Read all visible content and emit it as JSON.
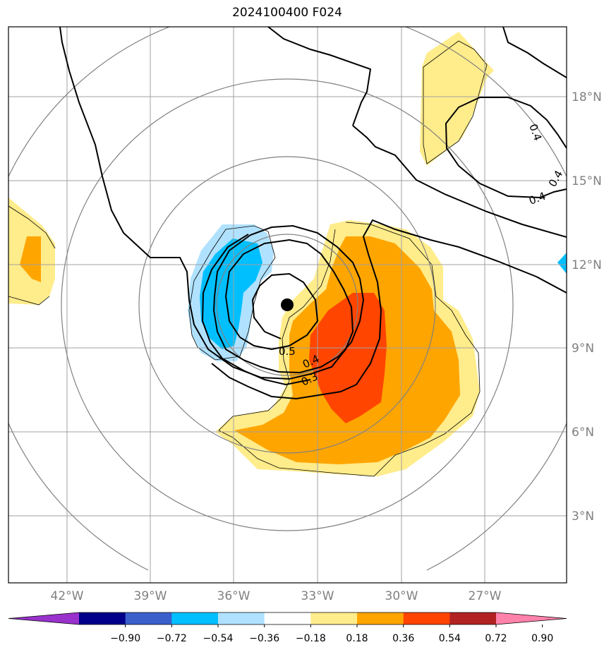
{
  "title": "2024100400 F024",
  "lat_labels": [
    "18°N",
    "15°N",
    "12°N",
    "9°N",
    "6°N",
    "3°N"
  ],
  "lon_labels": [
    "42°W",
    "39°W",
    "36°W",
    "33°W",
    "30°W",
    "27°W"
  ],
  "contour_labels": [
    "0.5",
    "0.4",
    "0.3",
    "0.4",
    "0.4",
    "0.4"
  ],
  "colorbar": {
    "tick_labels": [
      "−0.90",
      "−0.72",
      "−0.54",
      "−0.36",
      "−0.18",
      "0.18",
      "0.36",
      "0.54",
      "0.72",
      "0.90"
    ],
    "colors": [
      "#9932cc",
      "#00008b",
      "#3a5fcd",
      "#00bfff",
      "#b0e2ff",
      "#ffffff",
      "#ffec8b",
      "#ffa500",
      "#ff4500",
      "#b22222",
      "#ff82ab"
    ]
  },
  "colors": {
    "light_yellow": "#ffec8b",
    "orange": "#ffa500",
    "orange_red": "#ff4500",
    "deep_sky_blue": "#00bfff",
    "light_sky_blue": "#b0e2ff",
    "grid": "#a0a0a0",
    "range_rings": "#808080"
  },
  "storm_center_marker": "black-dot"
}
